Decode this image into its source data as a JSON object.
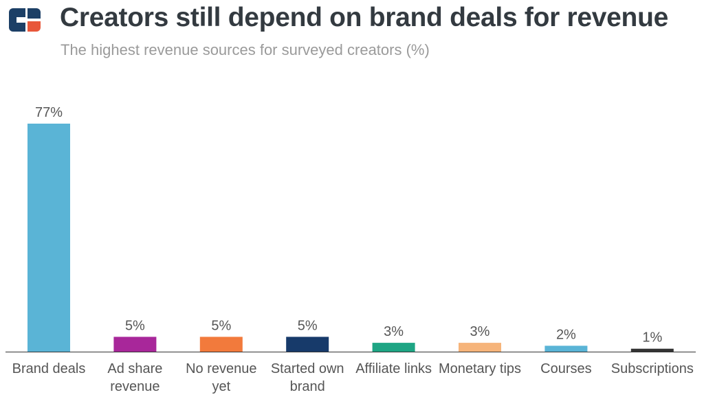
{
  "header": {
    "title": "Creators still depend on brand deals for revenue",
    "subtitle": "The highest revenue sources for surveyed creators (%)"
  },
  "logo": {
    "icon": "brand-logo-icon",
    "colors": [
      "#1c3f66",
      "#e8573a"
    ]
  },
  "chart_data": {
    "type": "bar",
    "title": "Creators still depend on brand deals for revenue",
    "subtitle": "The highest revenue sources for surveyed creators (%)",
    "xlabel": "",
    "ylabel": "",
    "categories": [
      [
        "Brand deals"
      ],
      [
        "Ad share",
        "revenue"
      ],
      [
        "No revenue",
        "yet"
      ],
      [
        "Started own",
        "brand"
      ],
      [
        "Affiliate links"
      ],
      [
        "Monetary tips"
      ],
      [
        "Courses"
      ],
      [
        "Subscriptions"
      ]
    ],
    "values": [
      77,
      5,
      5,
      5,
      3,
      3,
      2,
      1
    ],
    "value_labels": [
      "77%",
      "5%",
      "5%",
      "5%",
      "3%",
      "3%",
      "2%",
      "1%"
    ],
    "colors": [
      "#5ab4d6",
      "#a8279a",
      "#f27a3c",
      "#173a6a",
      "#1ea584",
      "#f6b47a",
      "#5ab4d6",
      "#333333"
    ],
    "ylim": [
      0,
      77
    ],
    "grid": false,
    "legend": "none"
  }
}
